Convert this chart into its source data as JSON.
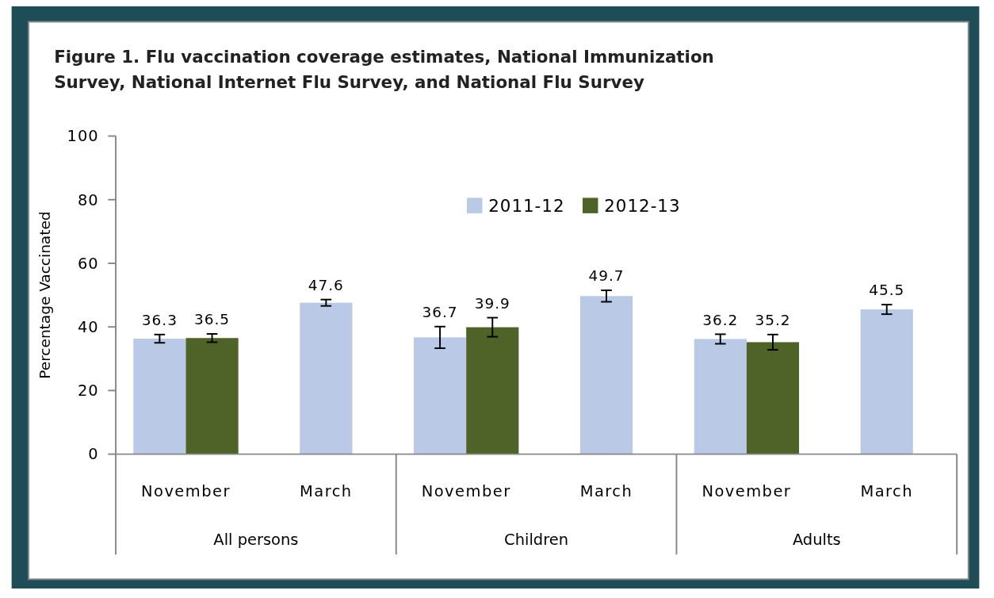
{
  "chart_data": {
    "type": "bar",
    "title": "Figure 1. Flu vaccination  coverage estimates, National Immunization Survey, National Internet Flu Survey, and National Flu Survey",
    "ylabel": "Percentage Vaccinated",
    "categories": [
      "November",
      "March",
      "November",
      "March",
      "November",
      "March"
    ],
    "annotations": [
      "All persons",
      "Children",
      "Adults"
    ],
    "series": [
      {
        "name": "2011-12",
        "color": "#b9c9e6",
        "values": [
          36.3,
          47.6,
          36.7,
          49.7,
          36.2,
          45.5
        ],
        "errors": [
          1.3,
          1,
          3.4,
          1.8,
          1.5,
          1.5
        ]
      },
      {
        "name": "2012-13",
        "color": "#4f6228",
        "values": [
          36.5,
          null,
          39.9,
          null,
          35.2,
          null
        ],
        "errors": [
          1.3,
          null,
          3,
          null,
          2.4,
          null
        ]
      }
    ],
    "ylim": [
      0,
      100
    ],
    "yticks": [
      0,
      20,
      40,
      60,
      80,
      100
    ],
    "grid": false,
    "legend": "top",
    "data_labels": true
  }
}
